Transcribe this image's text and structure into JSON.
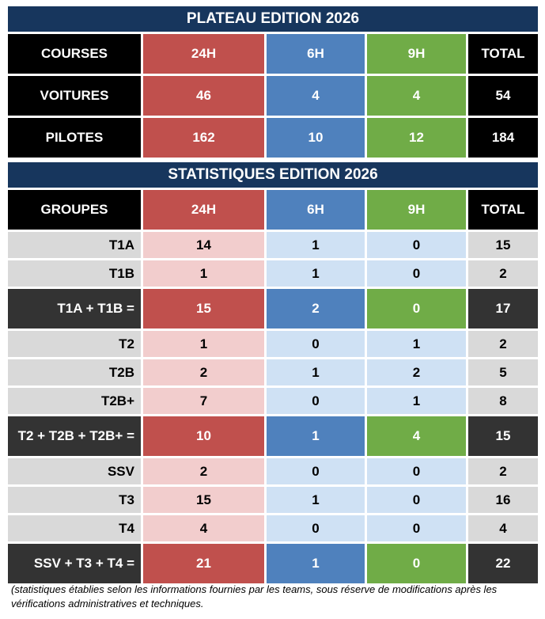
{
  "plateau": {
    "title": "PLATEAU EDITION 2026",
    "header": [
      "COURSES",
      "24H",
      "6H",
      "9H",
      "TOTAL"
    ],
    "rows": [
      {
        "label": "VOITURES",
        "v24": "46",
        "v6": "4",
        "v9": "4",
        "total": "54"
      },
      {
        "label": "PILOTES",
        "v24": "162",
        "v6": "10",
        "v9": "12",
        "total": "184"
      }
    ]
  },
  "stats": {
    "title": "STATISTIQUES EDITION 2026",
    "header": [
      "GROUPES",
      "24H",
      "6H",
      "9H",
      "TOTAL"
    ],
    "rows": [
      {
        "label": "T1A",
        "v24": "14",
        "v6": "1",
        "v9": "0",
        "total": "15",
        "sum": false
      },
      {
        "label": "T1B",
        "v24": "1",
        "v6": "1",
        "v9": "0",
        "total": "2",
        "sum": false
      },
      {
        "label": "T1A + T1B =",
        "v24": "15",
        "v6": "2",
        "v9": "0",
        "total": "17",
        "sum": true
      },
      {
        "label": "T2",
        "v24": "1",
        "v6": "0",
        "v9": "1",
        "total": "2",
        "sum": false
      },
      {
        "label": "T2B",
        "v24": "2",
        "v6": "1",
        "v9": "2",
        "total": "5",
        "sum": false
      },
      {
        "label": "T2B+",
        "v24": "7",
        "v6": "0",
        "v9": "1",
        "total": "8",
        "sum": false
      },
      {
        "label": "T2 + T2B + T2B+ =",
        "v24": "10",
        "v6": "1",
        "v9": "4",
        "total": "15",
        "sum": true
      },
      {
        "label": "SSV",
        "v24": "2",
        "v6": "0",
        "v9": "0",
        "total": "2",
        "sum": false
      },
      {
        "label": "T3",
        "v24": "15",
        "v6": "1",
        "v9": "0",
        "total": "16",
        "sum": false
      },
      {
        "label": "T4",
        "v24": "4",
        "v6": "0",
        "v9": "0",
        "total": "4",
        "sum": false
      },
      {
        "label": "SSV + T3 + T4 =",
        "v24": "21",
        "v6": "1",
        "v9": "0",
        "total": "22",
        "sum": true
      }
    ]
  },
  "footnote": "(statistiques établies selon les informations fournies par les teams, sous réserve de modifications après les vérifications administratives et techniques.",
  "colors": {
    "title_bg": "#17365d",
    "red": "#c0504d",
    "blue": "#4f81bd",
    "green": "#70ac47",
    "pink": "#f2cdcd",
    "light_blue": "#cfe1f4",
    "gray": "#d9d9d9",
    "dark": "#333333"
  }
}
